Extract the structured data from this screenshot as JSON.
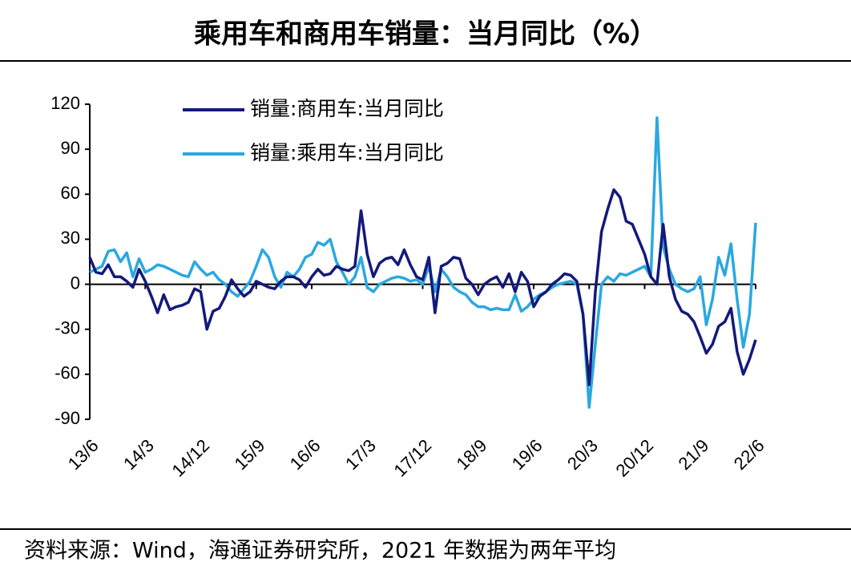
{
  "chart_data": {
    "type": "line",
    "title": "乘用车和商用车销量：当月同比（%）",
    "footer": "资料来源：Wind，海通证券研究所，2021 年数据为两年平均",
    "categories": [
      "13/6",
      null,
      null,
      null,
      null,
      null,
      null,
      null,
      null,
      "14/3",
      null,
      null,
      null,
      null,
      null,
      null,
      null,
      null,
      "14/12",
      null,
      null,
      null,
      null,
      null,
      null,
      null,
      null,
      "15/9",
      null,
      null,
      null,
      null,
      null,
      null,
      null,
      null,
      "16/6",
      null,
      null,
      null,
      null,
      null,
      null,
      null,
      null,
      "17/3",
      null,
      null,
      null,
      null,
      null,
      null,
      null,
      null,
      "17/12",
      null,
      null,
      null,
      null,
      null,
      null,
      null,
      null,
      "18/9",
      null,
      null,
      null,
      null,
      null,
      null,
      null,
      null,
      "19/6",
      null,
      null,
      null,
      null,
      null,
      null,
      null,
      null,
      "20/3",
      null,
      null,
      null,
      null,
      null,
      null,
      null,
      null,
      "20/12",
      null,
      null,
      null,
      null,
      null,
      null,
      null,
      null,
      "21/9",
      null,
      null,
      null,
      null,
      null,
      null,
      null,
      null,
      "22/6"
    ],
    "series": [
      {
        "name": "销量:商用车:当月同比",
        "color": "#14197a",
        "values": [
          18,
          8,
          7,
          13,
          5,
          5,
          2,
          -2,
          10,
          2,
          -8,
          -19,
          -7,
          -17,
          -15,
          -14,
          -12,
          -3,
          -5,
          -30,
          -18,
          -16,
          -8,
          3,
          -3,
          -8,
          -5,
          2,
          0,
          -2,
          -3,
          2,
          5,
          5,
          3,
          -2,
          5,
          10,
          6,
          7,
          12,
          10,
          9,
          12,
          49,
          20,
          5,
          14,
          17,
          18,
          13,
          23,
          13,
          5,
          3,
          18,
          -19,
          12,
          14,
          18,
          17,
          4,
          0,
          -7,
          0,
          3,
          5,
          -2,
          7,
          -5,
          8,
          2,
          -15,
          -8,
          -5,
          0,
          3,
          7,
          6,
          2,
          -20,
          -67,
          -5,
          35,
          50,
          63,
          58,
          42,
          40,
          30,
          20,
          5,
          0,
          40,
          5,
          -10,
          -18,
          -20,
          -25,
          -35,
          -46,
          -40,
          -28,
          -25,
          -16,
          -45,
          -60,
          -50,
          -37
        ]
      },
      {
        "name": "销量:乘用车:当月同比",
        "color": "#2aa8e0",
        "values": [
          8,
          10,
          12,
          22,
          23,
          15,
          21,
          5,
          17,
          8,
          10,
          13,
          12,
          10,
          8,
          6,
          5,
          15,
          10,
          6,
          8,
          3,
          0,
          -5,
          -8,
          -3,
          2,
          12,
          23,
          18,
          5,
          -2,
          8,
          5,
          10,
          18,
          20,
          28,
          26,
          30,
          15,
          8,
          0,
          5,
          18,
          -2,
          -5,
          0,
          2,
          4,
          5,
          4,
          2,
          3,
          0,
          12,
          -5,
          10,
          5,
          -2,
          -5,
          -7,
          -12,
          -15,
          -15,
          -17,
          -16,
          -17,
          -17,
          -7,
          -18,
          -15,
          -10,
          -7,
          -5,
          -2,
          0,
          1,
          2,
          0,
          -20,
          -82,
          -40,
          0,
          5,
          2,
          7,
          6,
          8,
          10,
          12,
          5,
          111,
          25,
          10,
          0,
          -3,
          -5,
          -3,
          5,
          -27,
          -10,
          18,
          6,
          27,
          -10,
          -42,
          -20,
          41
        ]
      }
    ],
    "ylim": [
      -90,
      120
    ],
    "yticks": [
      -90,
      -60,
      -30,
      0,
      30,
      60,
      90,
      120
    ],
    "grid": false
  }
}
